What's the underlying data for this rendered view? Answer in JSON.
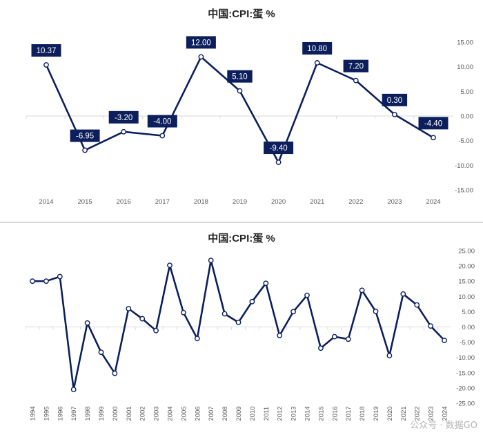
{
  "colors": {
    "line": "#0c1f5c",
    "label_bg": "#0c1f5c",
    "label_text": "#ffffff",
    "axis": "#d9d9d9",
    "tick": "#595959"
  },
  "watermark": "公众号 · 数据GO",
  "chart_data": [
    {
      "type": "line",
      "title": "中国:CPI:蛋 %",
      "categories": [
        "2014",
        "2015",
        "2016",
        "2017",
        "2018",
        "2019",
        "2020",
        "2021",
        "2022",
        "2023",
        "2024"
      ],
      "values": [
        10.37,
        -6.95,
        -3.2,
        -4.0,
        12.0,
        5.1,
        -9.4,
        10.8,
        7.2,
        0.3,
        -4.4
      ],
      "data_labels": [
        "10.37",
        "-6.95",
        "-3.20",
        "-4.00",
        "12.00",
        "5.10",
        "-9.40",
        "10.80",
        "7.20",
        "0.30",
        "-4.40"
      ],
      "ylim": [
        -15,
        15
      ],
      "yticks": [
        "15.00",
        "10.00",
        "5.00",
        "0.00",
        "-5.00",
        "-10.00",
        "-15.00"
      ],
      "ytick_values": [
        15,
        10,
        5,
        0,
        -5,
        -10,
        -15
      ],
      "y_axis_side": "right",
      "grid": false,
      "xlabel": "",
      "ylabel": ""
    },
    {
      "type": "line",
      "title": "中国:CPI:蛋 %",
      "categories": [
        "1994",
        "1995",
        "1996",
        "1997",
        "1998",
        "1999",
        "2000",
        "2001",
        "2002",
        "2003",
        "2004",
        "2005",
        "2006",
        "2007",
        "2008",
        "2009",
        "2010",
        "2011",
        "2012",
        "2013",
        "2014",
        "2015",
        "2016",
        "2017",
        "2018",
        "2019",
        "2020",
        "2021",
        "2022",
        "2023",
        "2024"
      ],
      "values": [
        15.0,
        15.0,
        16.5,
        -20.5,
        1.3,
        -8.3,
        -15.2,
        6.0,
        2.7,
        -1.2,
        20.2,
        4.7,
        -3.8,
        21.8,
        4.3,
        1.5,
        8.3,
        14.3,
        -2.8,
        5.0,
        10.37,
        -6.95,
        -3.2,
        -4.0,
        12.0,
        5.1,
        -9.4,
        10.8,
        7.2,
        0.3,
        -4.4
      ],
      "ylim": [
        -25,
        25
      ],
      "yticks": [
        "25.00",
        "20.00",
        "15.00",
        "10.00",
        "5.00",
        "0.00",
        "-5.00",
        "-10.00",
        "-15.00",
        "-20.00",
        "-25.00"
      ],
      "ytick_values": [
        25,
        20,
        15,
        10,
        5,
        0,
        -5,
        -10,
        -15,
        -20,
        -25
      ],
      "y_axis_side": "right",
      "grid": false,
      "xlabel": "",
      "ylabel": ""
    }
  ]
}
